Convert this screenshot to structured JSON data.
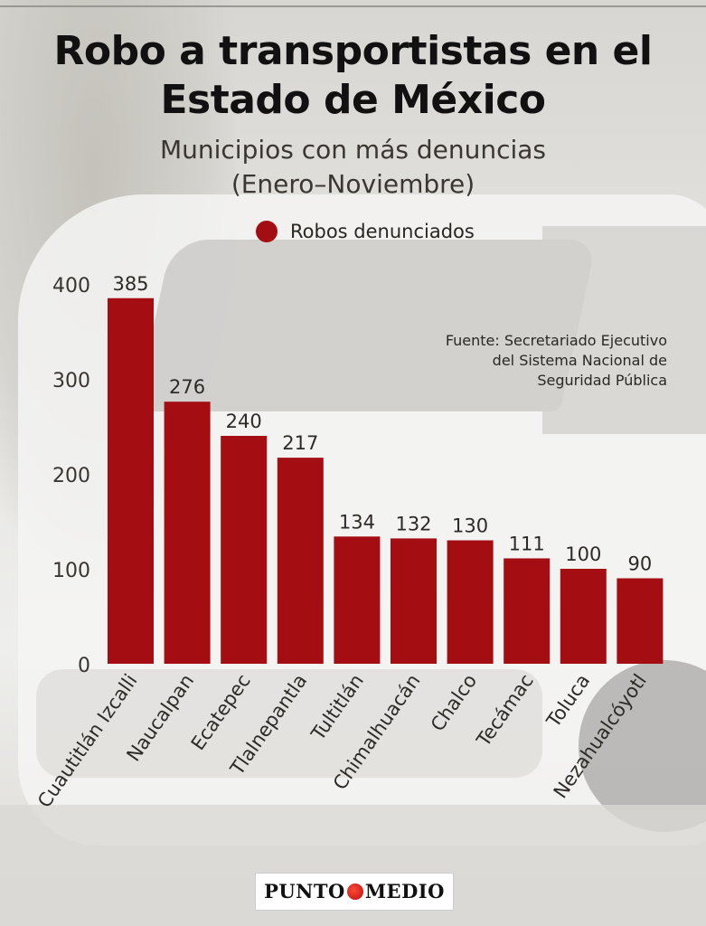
{
  "title_line1": "Robo a transportistas en el",
  "title_line2": "Estado de México",
  "subtitle_line1": "Municipios con más denuncias",
  "subtitle_line2": "(Enero–Noviembre)",
  "source_lines": [
    "Fuente: Secretariado Ejecutivo",
    "del Sistema Nacional de",
    "Seguridad Pública"
  ],
  "logo": {
    "left": "PUNTO",
    "right": "MEDIO"
  },
  "colors": {
    "bar": "#a40d12",
    "legend_dot": "#a40d12"
  },
  "chart_data": {
    "type": "bar",
    "categories": [
      "Cuautitlán Izcalli",
      "Naucalpan",
      "Ecatepec",
      "Tlalnepantla",
      "Tultitlán",
      "Chimalhuacán",
      "Chalco",
      "Tecámac",
      "Toluca",
      "Nezahualcóyotl"
    ],
    "series": [
      {
        "name": "Robos denunciados",
        "values": [
          385,
          276,
          240,
          217,
          134,
          132,
          130,
          111,
          100,
          90
        ]
      }
    ],
    "yticks": [
      0,
      100,
      200,
      300,
      400
    ],
    "ylim": [
      0,
      400
    ],
    "data_labels": true,
    "grid": false,
    "legend_position": "top-center"
  }
}
